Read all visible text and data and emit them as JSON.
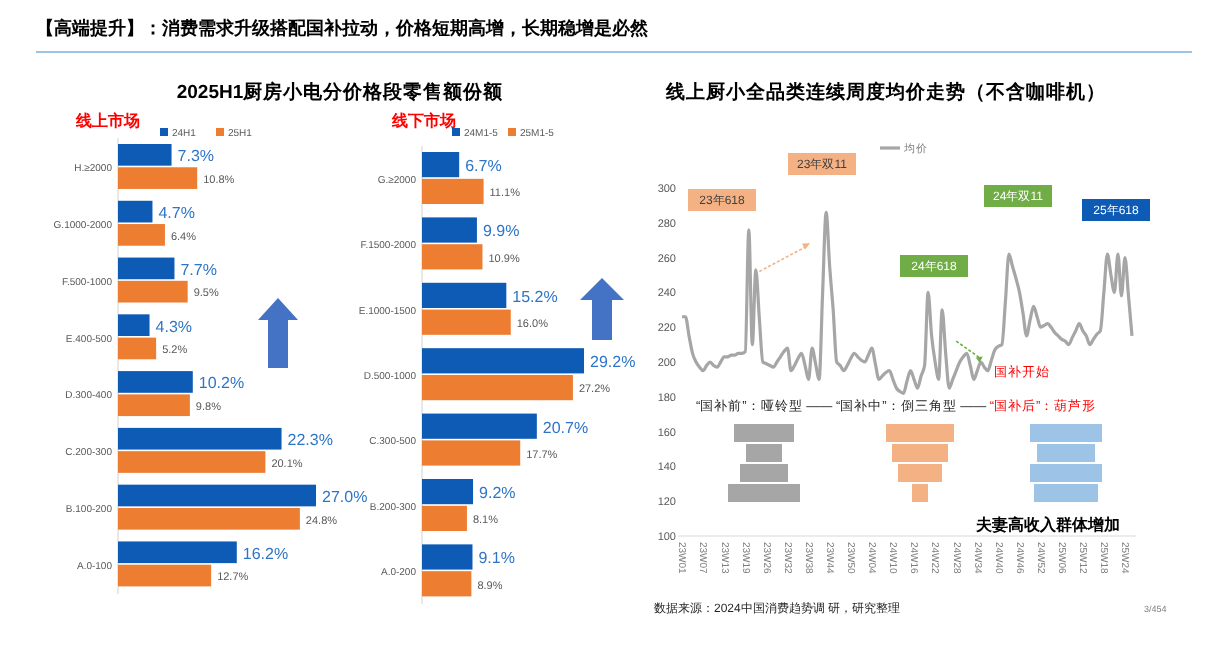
{
  "chart_data": [
    {
      "type": "bar",
      "orientation": "horizontal",
      "title": "2025H1厨房小电分价格段零售额份额",
      "subtitle": "线上市场",
      "legend": "top",
      "annotations": [
        "【高端提升】：消费需求升级搭配国补拉动，价格短期高增，长期稳增是必然"
      ],
      "categories": [
        "H.≥2000",
        "G.1000-2000",
        "F.500-1000",
        "E.400-500",
        "D.300-400",
        "C.200-300",
        "B.100-200",
        "A.0-100"
      ],
      "series": [
        {
          "name": "24H1",
          "color": "#0e5bb5",
          "values": [
            7.3,
            4.7,
            7.7,
            4.3,
            10.2,
            22.3,
            27.0,
            16.2
          ],
          "value_labels": [
            "7.3%",
            "4.7%",
            "7.7%",
            "4.3%",
            "10.2%",
            "22.3%",
            "27.0%",
            "16.2%"
          ]
        },
        {
          "name": "25H1",
          "color": "#ed7d31",
          "values": [
            10.8,
            6.4,
            9.5,
            5.2,
            9.8,
            20.1,
            24.8,
            12.7
          ],
          "value_labels": [
            "10.8%",
            "6.4%",
            "9.5%",
            "5.2%",
            "9.8%",
            "20.1%",
            "24.8%",
            "12.7%"
          ]
        }
      ]
    },
    {
      "type": "bar",
      "orientation": "horizontal",
      "subtitle": "线下市场",
      "legend": "top",
      "categories": [
        "G.≥2000",
        "F.1500-2000",
        "E.1000-1500",
        "D.500-1000",
        "C.300-500",
        "B.200-300",
        "A.0-200"
      ],
      "series": [
        {
          "name": "24M1-5",
          "color": "#0e5bb5",
          "values": [
            6.7,
            9.9,
            15.2,
            29.2,
            20.7,
            9.2,
            9.1
          ],
          "value_labels": [
            "6.7%",
            "9.9%",
            "15.2%",
            "29.2%",
            "20.7%",
            "9.2%",
            "9.1%"
          ]
        },
        {
          "name": "25M1-5",
          "color": "#ed7d31",
          "values": [
            11.1,
            10.9,
            16.0,
            27.2,
            17.7,
            8.1,
            8.9
          ],
          "value_labels": [
            "11.1%",
            "10.9%",
            "16.0%",
            "27.2%",
            "17.7%",
            "8.1%",
            "8.9%"
          ]
        }
      ]
    },
    {
      "type": "line",
      "title": "线上厨小全品类连续周度均价走势（不含咖啡机）",
      "legend": "top",
      "ylim": [
        100,
        300
      ],
      "yticks": [
        100,
        120,
        140,
        160,
        180,
        200,
        220,
        240,
        260,
        280,
        300
      ],
      "categories": [
        "23W01",
        null,
        null,
        null,
        null,
        null,
        "23W07",
        null,
        null,
        null,
        null,
        null,
        "23W13",
        null,
        null,
        null,
        null,
        null,
        "23W19",
        null,
        null,
        null,
        null,
        null,
        "23W26",
        null,
        null,
        null,
        null,
        null,
        "23W32",
        null,
        null,
        null,
        null,
        null,
        "23W38",
        null,
        null,
        null,
        null,
        null,
        "23W44",
        null,
        null,
        null,
        null,
        null,
        "23W50",
        null,
        null,
        null,
        null,
        null,
        "24W04",
        null,
        null,
        null,
        null,
        null,
        "24W10",
        null,
        null,
        null,
        null,
        null,
        "24W16",
        null,
        null,
        null,
        null,
        null,
        "24W22",
        null,
        null,
        null,
        null,
        null,
        "24W28",
        null,
        null,
        null,
        null,
        null,
        "24W34",
        null,
        null,
        null,
        null,
        null,
        "24W40",
        null,
        null,
        null,
        null,
        null,
        "24W46",
        null,
        null,
        null,
        null,
        null,
        "24W52",
        null,
        null,
        null,
        null,
        null,
        "25W06",
        null,
        null,
        null,
        null,
        null,
        "25W12",
        null,
        null,
        null,
        null,
        null,
        "25W18",
        null,
        null,
        null,
        null,
        null,
        "25W24",
        null,
        null
      ],
      "series": [
        {
          "name": "均价",
          "color": "#a6a6a6",
          "values": [
            226,
            226,
            215,
            205,
            200,
            197,
            195,
            198,
            200,
            198,
            197,
            200,
            203,
            203,
            204,
            204,
            205,
            205,
            206,
            276,
            210,
            253,
            225,
            200,
            199,
            198,
            197,
            200,
            203,
            206,
            208,
            195,
            198,
            202,
            205,
            198,
            190,
            208,
            199,
            190,
            240,
            286,
            255,
            230,
            200,
            198,
            195,
            198,
            202,
            205,
            203,
            201,
            200,
            204,
            208,
            199,
            190,
            192,
            194,
            195,
            190,
            185,
            183,
            182,
            189,
            195,
            190,
            185,
            192,
            198,
            240,
            215,
            200,
            190,
            230,
            205,
            185,
            190,
            195,
            200,
            203,
            205,
            198,
            190,
            195,
            200,
            197,
            195,
            201,
            207,
            209,
            210,
            235,
            262,
            255,
            248,
            240,
            228,
            215,
            224,
            232,
            226,
            220,
            221,
            222,
            220,
            217,
            215,
            213,
            212,
            210,
            214,
            218,
            222,
            218,
            215,
            210,
            213,
            216,
            218,
            240,
            262,
            250,
            240,
            262,
            238,
            260,
            238,
            215
          ]
        }
      ],
      "annotations": [
        "23年618",
        "23年双11",
        "24年618",
        "24年双11",
        "25年618",
        "国补开始",
        "“国补前”：哑铃型 —— “国补中”：倒三角型 —— ",
        "“国补后”：葫芦形",
        "夫妻高收入群体增加",
        "数据来源：2024中国消费趋势调 研，研究整理",
        "3/454"
      ]
    }
  ]
}
